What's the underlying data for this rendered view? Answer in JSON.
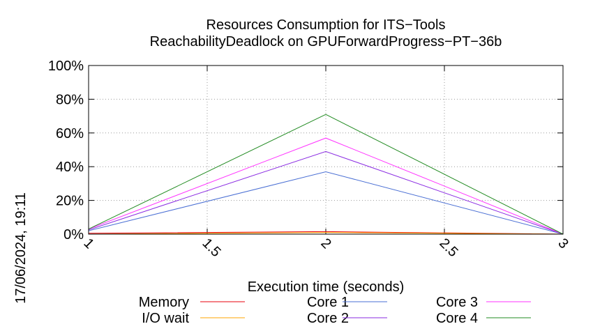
{
  "chart_data": {
    "type": "line",
    "title": "Resources Consumption for ITS−Tools",
    "subtitle": "ReachabilityDeadlock on GPUForwardProgress−PT−36b",
    "xlabel": "Execution time (seconds)",
    "ylabel": "",
    "xlim": [
      1,
      3
    ],
    "ylim": [
      0,
      100
    ],
    "xticks": [
      {
        "value": 1,
        "label": "1"
      },
      {
        "value": 1.5,
        "label": "1.5"
      },
      {
        "value": 2,
        "label": "2"
      },
      {
        "value": 2.5,
        "label": "2.5"
      },
      {
        "value": 3,
        "label": "3"
      }
    ],
    "yticks": [
      {
        "value": 0,
        "label": "0%"
      },
      {
        "value": 20,
        "label": "20%"
      },
      {
        "value": 40,
        "label": "40%"
      },
      {
        "value": 60,
        "label": "60%"
      },
      {
        "value": 80,
        "label": "80%"
      },
      {
        "value": 100,
        "label": "100%"
      }
    ],
    "grid": true,
    "legend_position": "bottom",
    "timestamp": "17/06/2024, 19:11",
    "series": [
      {
        "name": "Memory",
        "color": "#e8000b",
        "x": [
          1,
          2,
          3
        ],
        "values": [
          0.5,
          1.5,
          0
        ]
      },
      {
        "name": "I/O wait",
        "color": "#ffa500",
        "x": [
          1,
          2,
          3
        ],
        "values": [
          0,
          1,
          0
        ]
      },
      {
        "name": "Core 1",
        "color": "#4a6fd4",
        "x": [
          1,
          2,
          3
        ],
        "values": [
          2,
          37,
          0
        ]
      },
      {
        "name": "Core 2",
        "color": "#8a2be2",
        "x": [
          1,
          2,
          3
        ],
        "values": [
          2.5,
          49,
          0
        ]
      },
      {
        "name": "Core 3",
        "color": "#ff33ff",
        "x": [
          1,
          2,
          3
        ],
        "values": [
          3,
          57,
          0
        ]
      },
      {
        "name": "Core 4",
        "color": "#228b22",
        "x": [
          1,
          2,
          3
        ],
        "values": [
          3,
          71,
          0
        ]
      }
    ]
  }
}
